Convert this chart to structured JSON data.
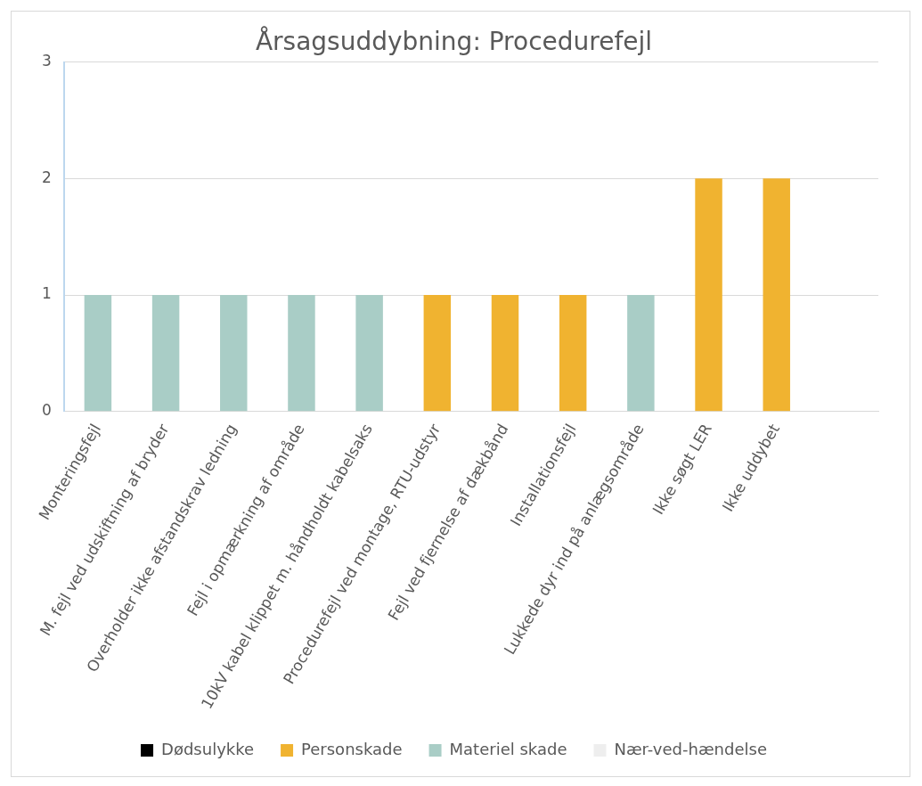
{
  "chart_data": {
    "type": "bar",
    "title": "Årsagsuddybning: Procedurefejl",
    "categories": [
      "Monteringsfejl",
      "M. fejl ved udskiftning af bryder",
      "Overholder ikke afstandskrav ledning",
      "Fejl i opmærkning af område",
      "10kV kabel klippet m. håndholdt kabelsaks",
      "Procedurefejl ved montage, RTU-udstyr",
      "Fejl ved fjernelse af dækbånd",
      "Installationsfejl",
      "Lukkede dyr ind på anlægsområde",
      "Ikke søgt LER",
      "Ikke uddybet",
      null
    ],
    "series": [
      {
        "name": "Dødsulykke",
        "color": "#000000",
        "values": [
          0,
          0,
          0,
          0,
          0,
          0,
          0,
          0,
          0,
          0,
          0,
          null
        ]
      },
      {
        "name": "Personskade",
        "color": "#f0b330",
        "values": [
          0,
          0,
          0,
          0,
          0,
          1,
          1,
          1,
          0,
          2,
          2,
          null
        ]
      },
      {
        "name": "Materiel skade",
        "color": "#a9cdc6",
        "values": [
          1,
          1,
          1,
          1,
          1,
          0,
          0,
          0,
          1,
          0,
          0,
          null
        ]
      },
      {
        "name": "Nær-ved-hændelse",
        "color": "#eeeeee",
        "values": [
          0,
          0,
          0,
          0,
          0,
          0,
          0,
          0,
          0,
          0,
          0,
          null
        ]
      }
    ],
    "stacked": true,
    "ylim": [
      0,
      3
    ],
    "yticks": [
      0,
      1,
      2,
      3
    ],
    "grid": "y",
    "legend": "bottom"
  }
}
